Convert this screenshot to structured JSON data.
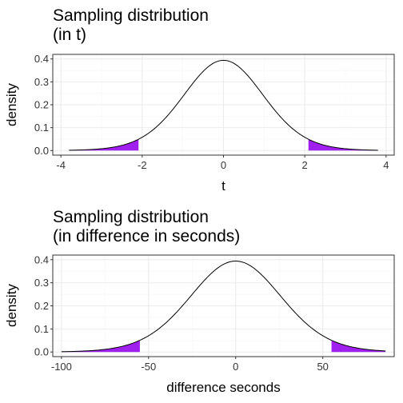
{
  "chart_data": [
    {
      "type": "area",
      "title": "Sampling distribution\n(in t)",
      "xlabel": "t",
      "ylabel": "density",
      "xlim": [
        -4.2,
        4.2
      ],
      "ylim": [
        -0.02,
        0.42
      ],
      "xticks": [
        -4,
        -2,
        0,
        2,
        4
      ],
      "yticks": [
        0.0,
        0.1,
        0.2,
        0.3,
        0.4
      ],
      "xtick_labels": [
        "-4",
        "-2",
        "0",
        "2",
        "4"
      ],
      "ytick_labels": [
        "0.0",
        "0.1",
        "0.2",
        "0.3",
        "0.4"
      ],
      "curve": {
        "distribution": "t",
        "df": 20,
        "center": 0,
        "scale": 1,
        "x_range": [
          -3.8,
          3.8
        ]
      },
      "shaded_tails": {
        "left": [
          -3.8,
          -2.09
        ],
        "right": [
          2.09,
          3.8
        ]
      },
      "grid": true
    },
    {
      "type": "area",
      "title": "Sampling distribution\n(in difference in seconds)",
      "xlabel": "difference seconds",
      "ylabel": "density",
      "xlim": [
        -105,
        91
      ],
      "ylim": [
        -0.02,
        0.42
      ],
      "xticks": [
        -100,
        -50,
        0,
        50
      ],
      "yticks": [
        0.0,
        0.1,
        0.2,
        0.3,
        0.4
      ],
      "xtick_labels": [
        "-100",
        "-50",
        "0",
        "50"
      ],
      "ytick_labels": [
        "0.0",
        "0.1",
        "0.2",
        "0.3",
        "0.4"
      ],
      "curve": {
        "distribution": "t",
        "df": 20,
        "center": 0,
        "scale": 26.5,
        "x_range": [
          -100,
          86
        ]
      },
      "shaded_tails": {
        "left": [
          -100,
          -55
        ],
        "right": [
          55,
          86
        ]
      },
      "grid": true
    }
  ],
  "colors": {
    "fill": "#a020f0",
    "panel_border": "#333333",
    "grid_major": "#ebebeb",
    "grid_minor": "#f5f5f5",
    "curve": "#000000"
  }
}
